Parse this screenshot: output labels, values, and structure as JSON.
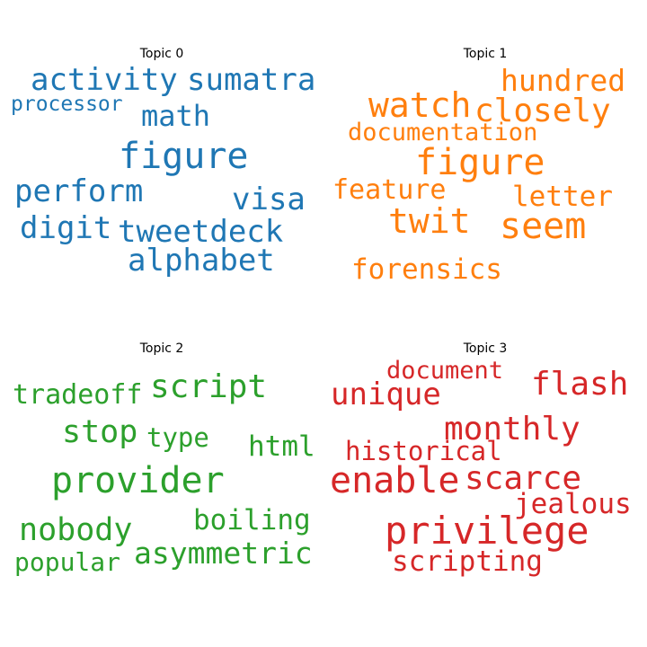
{
  "topics": [
    {
      "title": "Topic 0",
      "color": "#1f77b4",
      "words": [
        "activity",
        "sumatra",
        "processor",
        "math",
        "figure",
        "perform",
        "visa",
        "digit",
        "tweetdeck",
        "alphabet"
      ]
    },
    {
      "title": "Topic 1",
      "color": "#ff7f0e",
      "words": [
        "hundred",
        "watch",
        "closely",
        "documentation",
        "figure",
        "feature",
        "letter",
        "twit",
        "seem",
        "forensics"
      ]
    },
    {
      "title": "Topic 2",
      "color": "#2ca02c",
      "words": [
        "tradeoff",
        "script",
        "stop",
        "type",
        "html",
        "provider",
        "boiling",
        "nobody",
        "asymmetric",
        "popular"
      ]
    },
    {
      "title": "Topic 3",
      "color": "#d62728",
      "words": [
        "document",
        "flash",
        "unique",
        "monthly",
        "historical",
        "enable",
        "scarce",
        "jealous",
        "privilege",
        "scripting"
      ]
    }
  ]
}
